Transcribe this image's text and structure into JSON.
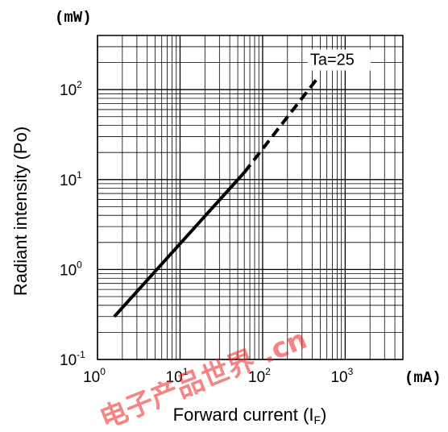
{
  "chart_data": {
    "type": "line",
    "x_scale": "log",
    "y_scale": "log",
    "xlim": [
      1,
      5000
    ],
    "ylim": [
      0.1,
      400
    ],
    "x_unit": "(mA)",
    "y_unit": "(mW)",
    "xlabel": {
      "main": "Forward current (I",
      "sub": "F",
      "end": ")"
    },
    "ylabel": "Radiant intensity (Po)",
    "x_ticks": [
      {
        "base": "10",
        "exp": "0",
        "value": 1
      },
      {
        "base": "10",
        "exp": "1",
        "value": 10
      },
      {
        "base": "10",
        "exp": "2",
        "value": 100
      },
      {
        "base": "10",
        "exp": "3",
        "value": 1000
      }
    ],
    "y_ticks": [
      {
        "base": "10",
        "exp": "-1",
        "value": 0.1
      },
      {
        "base": "10",
        "exp": "0",
        "value": 1
      },
      {
        "base": "10",
        "exp": "1",
        "value": 10
      },
      {
        "base": "10",
        "exp": "2",
        "value": 100
      }
    ],
    "grid": true,
    "series": [
      {
        "name": "Ta=25",
        "segments": [
          {
            "style": "solid",
            "x": [
              1.6,
              60
            ],
            "y": [
              0.3,
              12
            ]
          },
          {
            "style": "dashed",
            "x": [
              60,
              450
            ],
            "y": [
              12,
              130
            ]
          }
        ]
      }
    ],
    "annotation": "Ta=25"
  },
  "watermark": "电子产品世界 .cn"
}
